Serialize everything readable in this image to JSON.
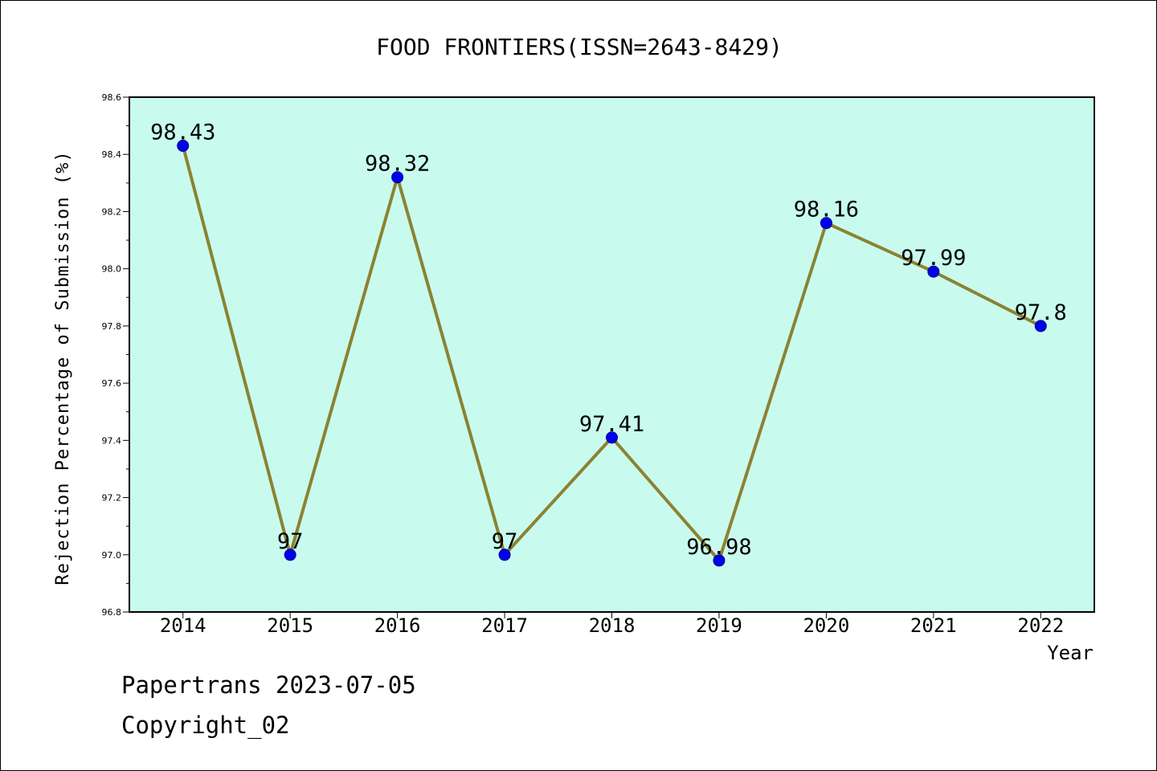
{
  "chart_data": {
    "type": "line",
    "title": "FOOD FRONTIERS(ISSN=2643-8429)",
    "xlabel": "Year",
    "ylabel": "Rejection Percentage of Submission (%)",
    "categories": [
      "2014",
      "2015",
      "2016",
      "2017",
      "2018",
      "2019",
      "2020",
      "2021",
      "2022"
    ],
    "series": [
      {
        "values": [
          98.43,
          97,
          98.32,
          97,
          97.41,
          96.98,
          98.16,
          97.99,
          97.8
        ],
        "data_labels": [
          "98.43",
          "97",
          "98.32",
          "97",
          "97.41",
          "96.98",
          "98.16",
          "97.99",
          "97.8"
        ]
      }
    ],
    "ylim": [
      96.8,
      98.6
    ],
    "yticks": [
      "96.8",
      "97.0",
      "97.2",
      "97.4",
      "97.6",
      "97.8",
      "98.0",
      "98.2",
      "98.4",
      "98.6"
    ],
    "grid": false,
    "colors": {
      "plot_background": "#c8fbee",
      "line": "#8c8232",
      "marker_fill": "#0000ee",
      "marker_edge": "#00008b"
    }
  },
  "footer": {
    "line1": "Papertrans 2023-07-05",
    "line2": "Copyright_02"
  }
}
